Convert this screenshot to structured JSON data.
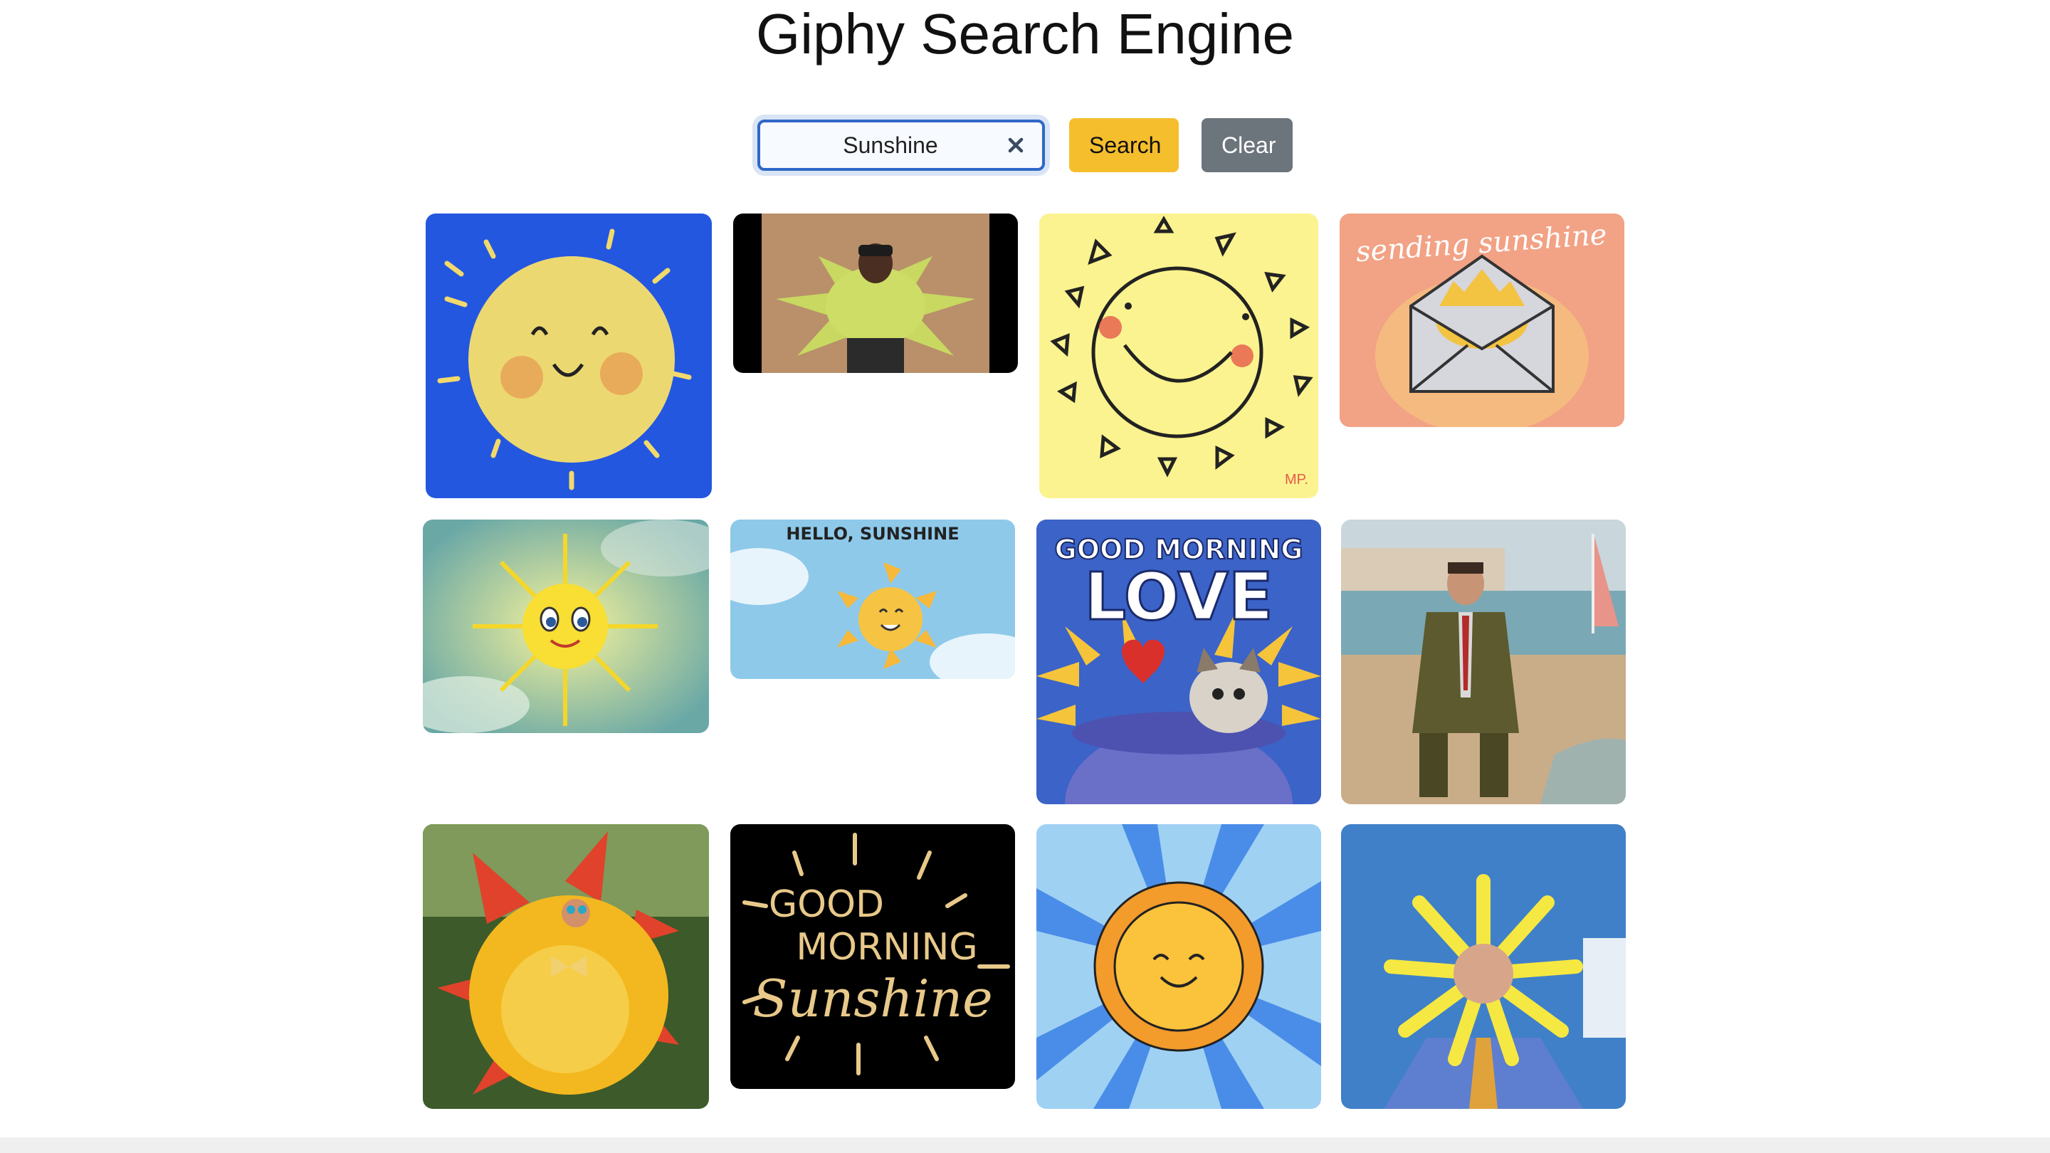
{
  "page": {
    "title": "Giphy Search Engine"
  },
  "search": {
    "value": "Sunshine",
    "search_label": "Search",
    "clear_label": "Clear",
    "clear_input_icon": "close-icon"
  },
  "colors": {
    "input_border": "#2f67c8",
    "search_button": "#f5be2d",
    "clear_button": "#6c747c"
  },
  "results": [
    {
      "name": "gif-blue-smiling-sun"
    },
    {
      "name": "gif-person-in-sun-costume"
    },
    {
      "name": "gif-doodle-sun"
    },
    {
      "name": "gif-sending-sunshine",
      "text": "sending sunshine"
    },
    {
      "name": "gif-cartoon-sun-clouds"
    },
    {
      "name": "gif-hello-sunshine",
      "text": "HELLO, SUNSHINE"
    },
    {
      "name": "gif-good-morning-love",
      "text_top": "GOOD MORNING",
      "text_bottom": "LOVE"
    },
    {
      "name": "gif-man-on-beach"
    },
    {
      "name": "gif-red-sun-costume"
    },
    {
      "name": "gif-good-morning-sunshine",
      "text_1": "GOOD",
      "text_2": "MORNING",
      "text_3": "Sunshine"
    },
    {
      "name": "gif-orange-sun-rays"
    },
    {
      "name": "gif-man-sun-headpiece"
    }
  ]
}
